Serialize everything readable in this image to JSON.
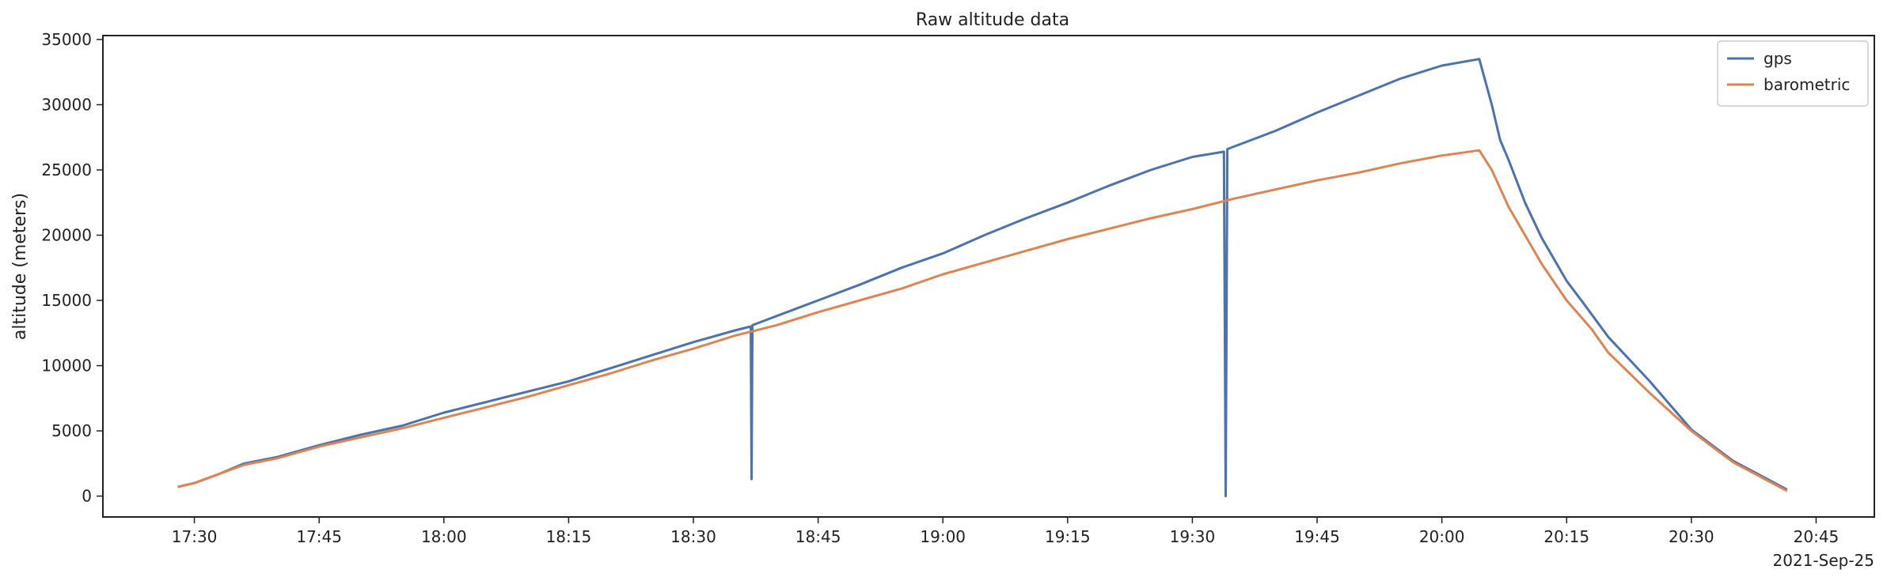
{
  "chart_data": {
    "type": "line",
    "title": "Raw altitude data",
    "xlabel": "",
    "ylabel": "altitude (meters)",
    "x_axis_offset_label": "2021-Sep-25",
    "x_ticks": [
      "17:30",
      "17:45",
      "18:00",
      "18:15",
      "18:30",
      "18:45",
      "19:00",
      "19:15",
      "19:30",
      "19:45",
      "20:00",
      "20:15",
      "20:30",
      "20:45"
    ],
    "xlim": [
      "17:19",
      "20:52"
    ],
    "y_ticks": [
      0,
      5000,
      10000,
      15000,
      20000,
      25000,
      30000,
      35000
    ],
    "ylim": [
      -1600,
      35300
    ],
    "grid": false,
    "legend_position": "top-right",
    "series": [
      {
        "name": "gps",
        "color": "#4C72B0",
        "points": [
          [
            "17:28",
            700
          ],
          [
            "17:30",
            1000
          ],
          [
            "17:33",
            1700
          ],
          [
            "17:36",
            2500
          ],
          [
            "17:40",
            3000
          ],
          [
            "17:45",
            3900
          ],
          [
            "17:50",
            4700
          ],
          [
            "17:55",
            5400
          ],
          [
            "18:00",
            6400
          ],
          [
            "18:05",
            7200
          ],
          [
            "18:10",
            8000
          ],
          [
            "18:15",
            8800
          ],
          [
            "18:20",
            9800
          ],
          [
            "18:25",
            10800
          ],
          [
            "18:30",
            11800
          ],
          [
            "18:35",
            12700
          ],
          [
            "18:36.9",
            13000
          ],
          [
            "18:37",
            1300
          ],
          [
            "18:37.1",
            13100
          ],
          [
            "18:40",
            13800
          ],
          [
            "18:45",
            15000
          ],
          [
            "18:50",
            16200
          ],
          [
            "18:55",
            17500
          ],
          [
            "19:00",
            18600
          ],
          [
            "19:05",
            20000
          ],
          [
            "19:10",
            21300
          ],
          [
            "19:15",
            22500
          ],
          [
            "19:20",
            23800
          ],
          [
            "19:25",
            25000
          ],
          [
            "19:30",
            26000
          ],
          [
            "19:33.8",
            26400
          ],
          [
            "19:34",
            0
          ],
          [
            "19:34.2",
            26600
          ],
          [
            "19:40",
            28000
          ],
          [
            "19:45",
            29400
          ],
          [
            "19:50",
            30700
          ],
          [
            "19:55",
            32000
          ],
          [
            "20:00",
            33000
          ],
          [
            "20:04.5",
            33500
          ],
          [
            "20:06",
            30000
          ],
          [
            "20:07",
            27300
          ],
          [
            "20:08",
            25800
          ],
          [
            "20:10",
            22500
          ],
          [
            "20:12",
            19800
          ],
          [
            "20:15",
            16500
          ],
          [
            "20:17",
            14800
          ],
          [
            "20:20",
            12200
          ],
          [
            "20:25",
            8800
          ],
          [
            "20:30",
            5100
          ],
          [
            "20:35",
            2700
          ],
          [
            "20:41.5",
            500
          ]
        ]
      },
      {
        "name": "barometric",
        "color": "#DD8452",
        "points": [
          [
            "17:28",
            700
          ],
          [
            "17:30",
            1000
          ],
          [
            "17:33",
            1700
          ],
          [
            "17:36",
            2400
          ],
          [
            "17:40",
            2900
          ],
          [
            "17:45",
            3800
          ],
          [
            "17:50",
            4500
          ],
          [
            "17:55",
            5200
          ],
          [
            "18:00",
            6000
          ],
          [
            "18:05",
            6800
          ],
          [
            "18:10",
            7600
          ],
          [
            "18:15",
            8500
          ],
          [
            "18:20",
            9400
          ],
          [
            "18:25",
            10400
          ],
          [
            "18:30",
            11300
          ],
          [
            "18:35",
            12300
          ],
          [
            "18:40",
            13100
          ],
          [
            "18:45",
            14100
          ],
          [
            "18:50",
            15000
          ],
          [
            "18:55",
            15900
          ],
          [
            "19:00",
            17000
          ],
          [
            "19:05",
            17900
          ],
          [
            "19:10",
            18800
          ],
          [
            "19:15",
            19700
          ],
          [
            "19:20",
            20500
          ],
          [
            "19:25",
            21300
          ],
          [
            "19:30",
            22000
          ],
          [
            "19:35",
            22800
          ],
          [
            "19:40",
            23500
          ],
          [
            "19:45",
            24200
          ],
          [
            "19:50",
            24800
          ],
          [
            "19:55",
            25500
          ],
          [
            "20:00",
            26100
          ],
          [
            "20:04.5",
            26500
          ],
          [
            "20:06",
            25000
          ],
          [
            "20:08",
            22200
          ],
          [
            "20:10",
            20000
          ],
          [
            "20:12",
            17800
          ],
          [
            "20:15",
            15000
          ],
          [
            "20:18",
            12800
          ],
          [
            "20:20",
            11000
          ],
          [
            "20:25",
            7900
          ],
          [
            "20:30",
            5000
          ],
          [
            "20:35",
            2600
          ],
          [
            "20:41.5",
            400
          ]
        ]
      }
    ]
  }
}
